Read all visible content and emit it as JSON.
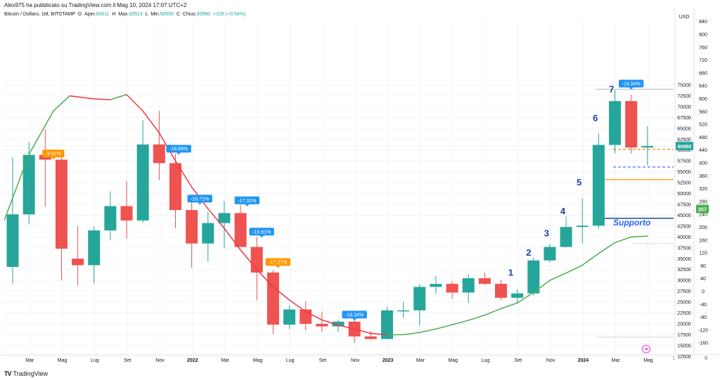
{
  "header": {
    "publisher": "Alex975 ha pubblicato su TradingView.com il Mag 10, 2024 17:07 UTC+2",
    "symbol": "Bitcoin / Dollaro, 1M, BITSTAMP",
    "open_label": "O",
    "open_text": "Aper.",
    "open_value": "60611",
    "high_label": "H",
    "high_text": "Max.",
    "high_value": "65513",
    "low_label": "L",
    "low_text": "Min.",
    "low_value": "56500",
    "close_label": "C",
    "close_text": "Chius.",
    "close_value": "60960",
    "change": "+328 (+0.54%)"
  },
  "brand": {
    "name": "TradingView",
    "logo": "TV"
  },
  "scale_buttons": {
    "log": "L",
    "auto": "B"
  },
  "colors": {
    "up": "#26a69a",
    "down": "#ef5350",
    "ma_up": "#4caf50",
    "ma_down": "#f23645",
    "label_blue": "#2196f3",
    "label_orange": "#ff9800",
    "annotation": "#1e3fa8",
    "support": "#1848a0",
    "level_orange": "#ff9800"
  },
  "chart_data": {
    "type": "candlestick",
    "title": "Bitcoin / Dollaro, 1M, BITSTAMP",
    "y_unit": "USD",
    "y_axis_left_ticks": [
      12500,
      15000,
      17500,
      20000,
      22500,
      25000,
      27500,
      30000,
      32500,
      35000,
      37500,
      40000,
      42500,
      45000,
      47500,
      50000,
      52500,
      55000,
      57500,
      60000,
      62500,
      65000,
      67500,
      70000,
      72500,
      75000
    ],
    "y_axis_right_ticks": [
      -160,
      -120,
      -80,
      -40,
      0,
      40,
      80,
      120,
      160,
      200,
      240,
      280,
      320,
      360,
      400,
      440,
      480,
      520,
      560,
      600,
      640,
      680,
      720,
      760,
      800,
      840
    ],
    "x_tick_labels": [
      "Mar",
      "Mag",
      "Lug",
      "Set",
      "Nov",
      "2022",
      "Mar",
      "Mag",
      "Lug",
      "Set",
      "Nov",
      "2023",
      "Mar",
      "Mag",
      "Lug",
      "Set",
      "Nov",
      "2024",
      "Mar",
      "Mag"
    ],
    "candles": [
      {
        "o": 33100,
        "h": 58300,
        "l": 29200,
        "c": 45200
      },
      {
        "o": 45200,
        "h": 61800,
        "l": 43000,
        "c": 58900
      },
      {
        "o": 58900,
        "h": 64800,
        "l": 47000,
        "c": 57800
      },
      {
        "o": 57800,
        "h": 59500,
        "l": 30000,
        "c": 37300
      },
      {
        "o": 35000,
        "h": 42500,
        "l": 28800,
        "c": 33500
      },
      {
        "o": 33500,
        "h": 42400,
        "l": 29300,
        "c": 41500
      },
      {
        "o": 41500,
        "h": 50500,
        "l": 39200,
        "c": 47100
      },
      {
        "o": 47100,
        "h": 52900,
        "l": 39600,
        "c": 43800
      },
      {
        "o": 43800,
        "h": 66900,
        "l": 43300,
        "c": 61300
      },
      {
        "o": 61300,
        "h": 69000,
        "l": 53100,
        "c": 57000
      },
      {
        "o": 57000,
        "h": 59200,
        "l": 42000,
        "c": 46200
      },
      {
        "o": 46200,
        "h": 47900,
        "l": 32900,
        "c": 38500
      },
      {
        "o": 38500,
        "h": 45800,
        "l": 34300,
        "c": 43200
      },
      {
        "o": 43200,
        "h": 48200,
        "l": 37400,
        "c": 45500
      },
      {
        "o": 45500,
        "h": 47400,
        "l": 37700,
        "c": 37700
      },
      {
        "o": 37700,
        "h": 40000,
        "l": 25400,
        "c": 31800
      },
      {
        "o": 31800,
        "h": 32400,
        "l": 17600,
        "c": 19800
      },
      {
        "o": 19800,
        "h": 24300,
        "l": 18800,
        "c": 23300
      },
      {
        "o": 23300,
        "h": 25200,
        "l": 18500,
        "c": 20000
      },
      {
        "o": 20000,
        "h": 22800,
        "l": 18100,
        "c": 19400
      },
      {
        "o": 19400,
        "h": 21000,
        "l": 18200,
        "c": 20500
      },
      {
        "o": 20500,
        "h": 21500,
        "l": 15600,
        "c": 17100
      },
      {
        "o": 17100,
        "h": 18400,
        "l": 16300,
        "c": 16500
      },
      {
        "o": 16500,
        "h": 23900,
        "l": 16500,
        "c": 23100
      },
      {
        "o": 23100,
        "h": 25100,
        "l": 21400,
        "c": 23100
      },
      {
        "o": 23100,
        "h": 29100,
        "l": 19600,
        "c": 28500
      },
      {
        "o": 28500,
        "h": 31000,
        "l": 26900,
        "c": 29200
      },
      {
        "o": 29200,
        "h": 29800,
        "l": 25800,
        "c": 27200
      },
      {
        "o": 27200,
        "h": 31400,
        "l": 24800,
        "c": 30500
      },
      {
        "o": 30500,
        "h": 31800,
        "l": 28900,
        "c": 29200
      },
      {
        "o": 29200,
        "h": 30100,
        "l": 25400,
        "c": 26000
      },
      {
        "o": 26000,
        "h": 28000,
        "l": 24900,
        "c": 27000
      },
      {
        "o": 27000,
        "h": 35200,
        "l": 26500,
        "c": 34600
      },
      {
        "o": 34600,
        "h": 38400,
        "l": 34100,
        "c": 37700
      },
      {
        "o": 37700,
        "h": 44700,
        "l": 37600,
        "c": 42300
      },
      {
        "o": 42300,
        "h": 48900,
        "l": 38500,
        "c": 42600
      },
      {
        "o": 42600,
        "h": 63900,
        "l": 41900,
        "c": 61200
      },
      {
        "o": 61200,
        "h": 73800,
        "l": 59300,
        "c": 71300
      },
      {
        "o": 71300,
        "h": 72800,
        "l": 59200,
        "c": 60600
      },
      {
        "o": 60611,
        "h": 65513,
        "l": 56500,
        "c": 60960
      }
    ],
    "moving_average_points": [
      {
        "i": -0.5,
        "v": 44000
      },
      {
        "i": 1,
        "v": 59000
      },
      {
        "i": 2.5,
        "v": 69000
      },
      {
        "i": 3.5,
        "v": 72500
      },
      {
        "i": 5,
        "v": 71800
      },
      {
        "i": 6,
        "v": 71600
      },
      {
        "i": 7,
        "v": 72800
      },
      {
        "i": 8,
        "v": 69000
      },
      {
        "i": 9,
        "v": 64000
      },
      {
        "i": 10,
        "v": 57500
      },
      {
        "i": 11,
        "v": 51500
      },
      {
        "i": 12,
        "v": 46500
      },
      {
        "i": 13,
        "v": 42000
      },
      {
        "i": 14,
        "v": 37000
      },
      {
        "i": 15,
        "v": 32500
      },
      {
        "i": 16,
        "v": 28500
      },
      {
        "i": 17,
        "v": 25500
      },
      {
        "i": 18,
        "v": 22800
      },
      {
        "i": 19,
        "v": 20900
      },
      {
        "i": 20,
        "v": 19700
      },
      {
        "i": 21,
        "v": 18800
      },
      {
        "i": 22,
        "v": 17800
      },
      {
        "i": 23,
        "v": 17500
      },
      {
        "i": 24,
        "v": 17500
      },
      {
        "i": 25,
        "v": 18000
      },
      {
        "i": 26,
        "v": 18800
      },
      {
        "i": 27,
        "v": 19800
      },
      {
        "i": 28,
        "v": 20800
      },
      {
        "i": 29,
        "v": 22000
      },
      {
        "i": 30,
        "v": 23500
      },
      {
        "i": 31,
        "v": 24800
      },
      {
        "i": 32,
        "v": 27200
      },
      {
        "i": 33,
        "v": 30000
      },
      {
        "i": 34,
        "v": 31700
      },
      {
        "i": 35,
        "v": 33500
      },
      {
        "i": 36,
        "v": 36200
      },
      {
        "i": 37,
        "v": 38700
      },
      {
        "i": 38,
        "v": 40000
      },
      {
        "i": 39,
        "v": 40200
      }
    ],
    "percent_labels": [
      {
        "i": 2.5,
        "text": "-9.57%",
        "color": "orange",
        "v": 58500
      },
      {
        "i": 10.2,
        "text": "-18.89%",
        "color": "blue",
        "v": 59600
      },
      {
        "i": 11.5,
        "text": "-16.71%",
        "color": "blue",
        "v": 48100
      },
      {
        "i": 14.4,
        "text": "-17.31%",
        "color": "blue",
        "v": 47700
      },
      {
        "i": 15.3,
        "text": "-15.61%",
        "color": "blue",
        "v": 40500
      },
      {
        "i": 16.3,
        "text": "-17.27%",
        "color": "orange",
        "v": 33500
      },
      {
        "i": 21,
        "text": "-16.34%",
        "color": "blue",
        "v": 21400
      },
      {
        "i": 38,
        "text": "-14.94%",
        "color": "blue",
        "v": 74600
      }
    ],
    "wave_labels": [
      {
        "i": 30.6,
        "text": "1",
        "v": 31100
      },
      {
        "i": 31.7,
        "text": "2",
        "v": 35700
      },
      {
        "i": 32.8,
        "text": "3",
        "v": 40100
      },
      {
        "i": 33.8,
        "text": "4",
        "v": 45200
      },
      {
        "i": 34.8,
        "text": "5",
        "v": 51900
      },
      {
        "i": 35.8,
        "text": "6",
        "v": 66700
      },
      {
        "i": 36.8,
        "text": "7",
        "v": 73300
      }
    ],
    "support_label": "Supporto",
    "levels": {
      "support": 44300,
      "orange_solid": 53200,
      "blue_dashed": 56100,
      "orange_dashed": 60200,
      "top_line": 74000,
      "green_dotted": 38500
    },
    "price_tags": {
      "last_price": "60960",
      "ma_value": "257"
    }
  }
}
